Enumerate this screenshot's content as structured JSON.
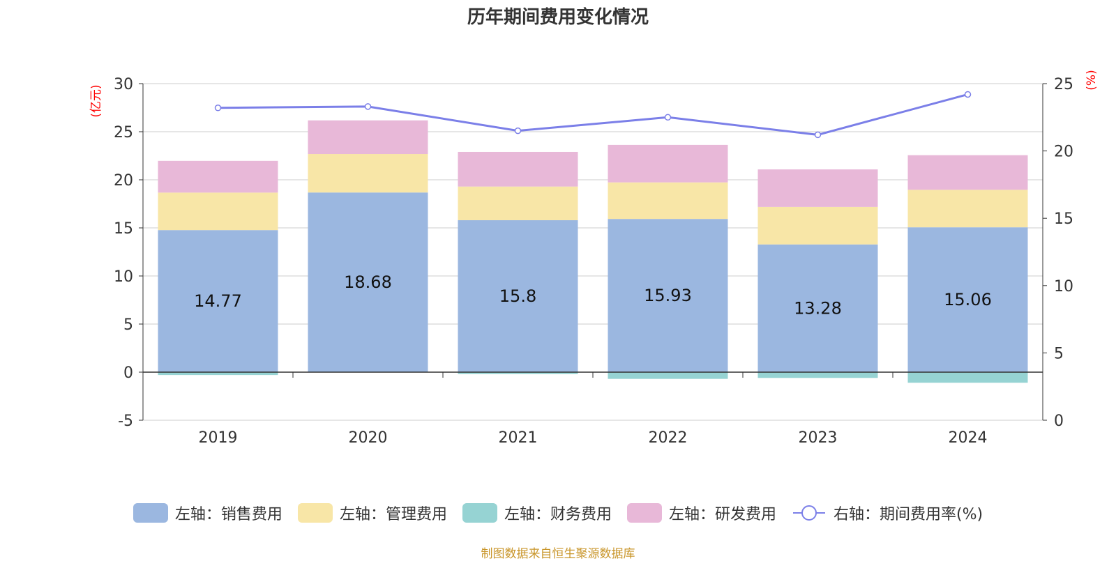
{
  "chart_data": {
    "type": "bar",
    "title": "历年期间费用变化情况",
    "categories": [
      "2019",
      "2020",
      "2021",
      "2022",
      "2023",
      "2024"
    ],
    "series": [
      {
        "name": "左轴：销售费用",
        "axis": "left",
        "color": "#9bb7e0",
        "values": [
          14.77,
          18.68,
          15.8,
          15.93,
          13.28,
          15.06
        ],
        "show_labels": true
      },
      {
        "name": "左轴：管理费用",
        "axis": "left",
        "color": "#f8e6a7",
        "values": [
          3.9,
          4.0,
          3.5,
          3.8,
          3.9,
          3.9
        ],
        "show_labels": false
      },
      {
        "name": "左轴：财务费用",
        "axis": "left",
        "color": "#96d3d3",
        "values": [
          -0.3,
          0.0,
          -0.2,
          -0.7,
          -0.6,
          -1.1
        ],
        "show_labels": false
      },
      {
        "name": "左轴：研发费用",
        "axis": "left",
        "color": "#e8b8d8",
        "values": [
          3.3,
          3.5,
          3.6,
          3.9,
          3.9,
          3.6
        ],
        "show_labels": false
      }
    ],
    "line_series": {
      "name": "右轴：期间费用率(%)",
      "axis": "right",
      "color": "#7b7fe8",
      "values": [
        23.2,
        23.3,
        21.5,
        22.5,
        21.2,
        24.2
      ]
    },
    "left_axis": {
      "label": "(亿元)",
      "min": -5,
      "max": 30,
      "ticks": [
        -5,
        0,
        5,
        10,
        15,
        20,
        25,
        30
      ]
    },
    "right_axis": {
      "label": "(%)",
      "min": 0,
      "max": 25,
      "ticks": [
        0,
        5,
        10,
        15,
        20,
        25
      ]
    },
    "legend_position": "bottom",
    "grid": true
  },
  "source_text": "制图数据来自恒生聚源数据库"
}
